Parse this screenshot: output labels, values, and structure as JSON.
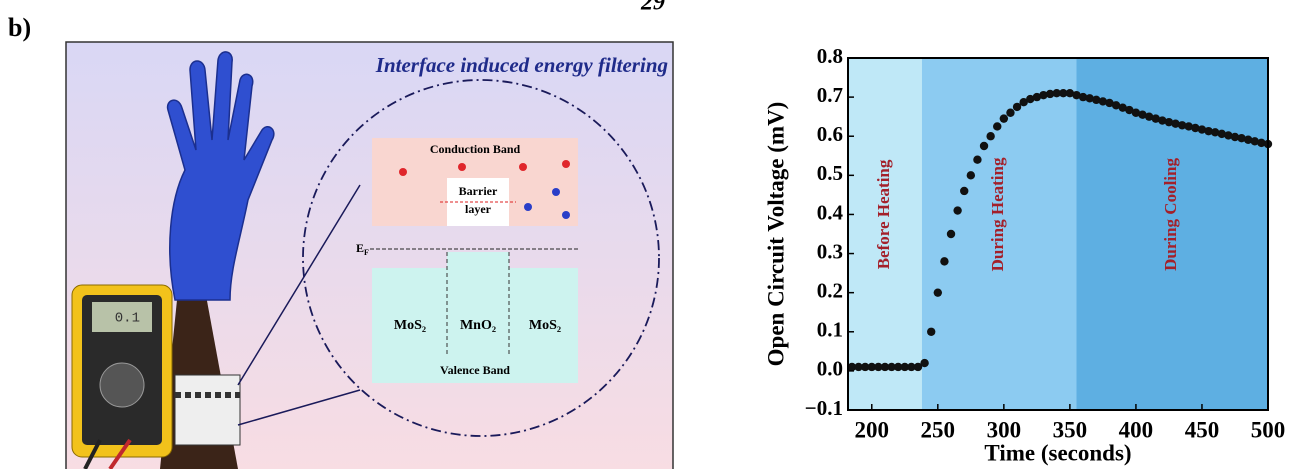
{
  "figure": {
    "label": "b)",
    "page_number": "29",
    "diagram": {
      "title": "Interface induced energy filtering",
      "conduction_band": "Conduction Band",
      "barrier_line1": "Barrier",
      "barrier_line2": "layer",
      "fermi": "E",
      "fermi_sub": "F",
      "materials": [
        "MoS₂",
        "MnO₂",
        "MoS₂"
      ],
      "valence_band": "Valence Band",
      "display": "0.1"
    }
  },
  "chart_data": {
    "type": "scatter",
    "xlabel": "Time (seconds)",
    "ylabel": "Open Circuit Voltage (mV)",
    "xlim": [
      182,
      500
    ],
    "ylim": [
      -0.1,
      0.8
    ],
    "xticks": [
      200,
      250,
      300,
      350,
      400,
      450,
      500
    ],
    "yticks": [
      {
        "value": -0.1,
        "label": "−0.1"
      },
      {
        "value": 0,
        "label": "0.0"
      },
      0.1,
      0.2,
      0.3,
      0.4,
      0.5,
      0.6,
      0.7,
      0.8
    ],
    "regions": [
      {
        "name": "Before Heating",
        "start": 182,
        "end": 238,
        "color": "#bfe8f7"
      },
      {
        "name": "During Heating",
        "start": 238,
        "end": 355,
        "color": "#8ccbf1"
      },
      {
        "name": "During Cooling",
        "start": 355,
        "end": 500,
        "color": "#5eafe2"
      }
    ],
    "color": "#111111",
    "x": [
      185,
      190,
      195,
      200,
      205,
      210,
      215,
      220,
      225,
      230,
      235,
      240,
      245,
      250,
      255,
      260,
      265,
      270,
      275,
      280,
      285,
      290,
      295,
      300,
      305,
      310,
      315,
      320,
      325,
      330,
      335,
      340,
      345,
      350,
      355,
      360,
      365,
      370,
      375,
      380,
      385,
      390,
      395,
      400,
      405,
      410,
      415,
      420,
      425,
      430,
      435,
      440,
      445,
      450,
      455,
      460,
      465,
      470,
      475,
      480,
      485,
      490,
      495,
      500
    ],
    "values": [
      0.01,
      0.01,
      0.01,
      0.01,
      0.01,
      0.01,
      0.01,
      0.01,
      0.01,
      0.01,
      0.01,
      0.02,
      0.1,
      0.2,
      0.28,
      0.35,
      0.41,
      0.46,
      0.5,
      0.54,
      0.575,
      0.6,
      0.625,
      0.645,
      0.66,
      0.675,
      0.687,
      0.695,
      0.7,
      0.705,
      0.708,
      0.71,
      0.71,
      0.71,
      0.705,
      0.7,
      0.697,
      0.693,
      0.689,
      0.685,
      0.679,
      0.673,
      0.667,
      0.66,
      0.655,
      0.65,
      0.645,
      0.64,
      0.636,
      0.632,
      0.628,
      0.625,
      0.621,
      0.617,
      0.613,
      0.61,
      0.606,
      0.602,
      0.598,
      0.595,
      0.591,
      0.587,
      0.583,
      0.58
    ]
  }
}
